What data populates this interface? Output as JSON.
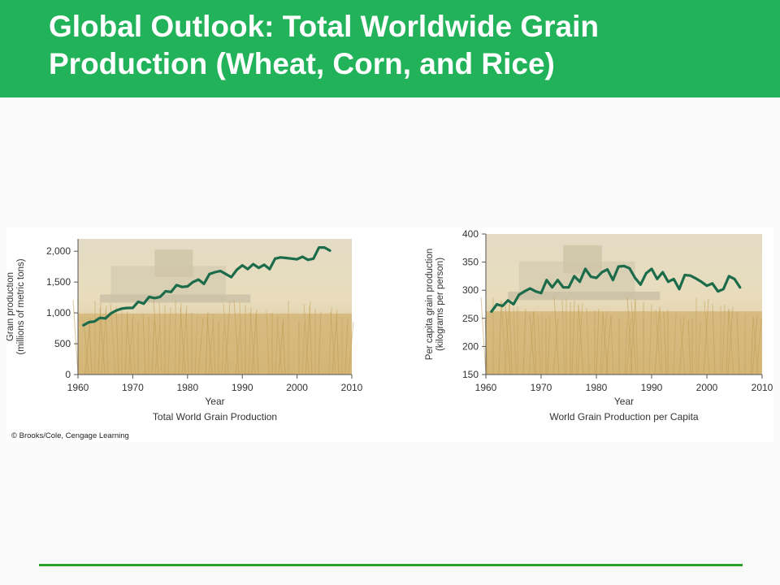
{
  "slide": {
    "title": "Global Outlook: Total Worldwide Grain Production (Wheat, Corn, and Rice)",
    "credit": "© Brooks/Cole, Cengage Learning"
  },
  "colors": {
    "header_bg": "#22b35a",
    "line": "#1c6b4a",
    "rule": "#2aa02a"
  },
  "chart_data": [
    {
      "type": "line",
      "title": "",
      "caption": "Total World Grain Production",
      "xlabel": "Year",
      "ylabel": "Grain production (millions of metric tons)",
      "ylabel_lines": [
        "Grain production",
        "(millions of metric tons)"
      ],
      "xlim": [
        1960,
        2010
      ],
      "ylim": [
        0,
        2200
      ],
      "xticks": [
        1960,
        1970,
        1980,
        1990,
        2000,
        2010
      ],
      "yticks": [
        0,
        500,
        1000,
        1500,
        2000
      ],
      "ytick_labels": [
        "0",
        "500",
        "1,000",
        "1,500",
        "2,000"
      ],
      "background": "photo of wheat field with combine harvester (faded)",
      "series": [
        {
          "name": "",
          "x": [
            1961,
            1962,
            1963,
            1964,
            1965,
            1966,
            1967,
            1968,
            1969,
            1970,
            1971,
            1972,
            1973,
            1974,
            1975,
            1976,
            1977,
            1978,
            1979,
            1980,
            1981,
            1982,
            1983,
            1984,
            1985,
            1986,
            1987,
            1988,
            1989,
            1990,
            1991,
            1992,
            1993,
            1994,
            1995,
            1996,
            1997,
            1998,
            1999,
            2000,
            2001,
            2002,
            2003,
            2004,
            2005,
            2006
          ],
          "y": [
            800,
            850,
            860,
            920,
            910,
            990,
            1040,
            1070,
            1080,
            1080,
            1180,
            1150,
            1260,
            1240,
            1260,
            1350,
            1340,
            1450,
            1420,
            1430,
            1500,
            1540,
            1470,
            1630,
            1660,
            1680,
            1630,
            1580,
            1700,
            1770,
            1710,
            1790,
            1730,
            1780,
            1710,
            1880,
            1900,
            1890,
            1880,
            1870,
            1910,
            1860,
            1880,
            2060,
            2060,
            2010
          ]
        }
      ]
    },
    {
      "type": "line",
      "title": "",
      "caption": "World Grain Production per Capita",
      "xlabel": "Year",
      "ylabel": "Per capita grain production (kilograms per person)",
      "ylabel_lines": [
        "Per capita grain production",
        "(kilograms per person)"
      ],
      "xlim": [
        1960,
        2010
      ],
      "ylim": [
        150,
        400
      ],
      "xticks": [
        1960,
        1970,
        1980,
        1990,
        2000,
        2010
      ],
      "yticks": [
        150,
        200,
        250,
        300,
        350,
        400
      ],
      "ytick_labels": [
        "150",
        "200",
        "250",
        "300",
        "350",
        "400"
      ],
      "background": "photo of wheat field with combine harvester (faded)",
      "series": [
        {
          "name": "",
          "x": [
            1961,
            1962,
            1963,
            1964,
            1965,
            1966,
            1967,
            1968,
            1969,
            1970,
            1971,
            1972,
            1973,
            1974,
            1975,
            1976,
            1977,
            1978,
            1979,
            1980,
            1981,
            1982,
            1983,
            1984,
            1985,
            1986,
            1987,
            1988,
            1989,
            1990,
            1991,
            1992,
            1993,
            1994,
            1995,
            1996,
            1997,
            1998,
            1999,
            2000,
            2001,
            2002,
            2003,
            2004,
            2005,
            2006
          ],
          "y": [
            262,
            275,
            272,
            282,
            275,
            292,
            298,
            303,
            298,
            295,
            318,
            305,
            318,
            305,
            305,
            325,
            315,
            338,
            324,
            322,
            332,
            337,
            318,
            342,
            343,
            339,
            322,
            310,
            330,
            338,
            320,
            332,
            315,
            320,
            302,
            327,
            326,
            321,
            315,
            308,
            312,
            298,
            302,
            325,
            320,
            305
          ]
        }
      ]
    }
  ]
}
